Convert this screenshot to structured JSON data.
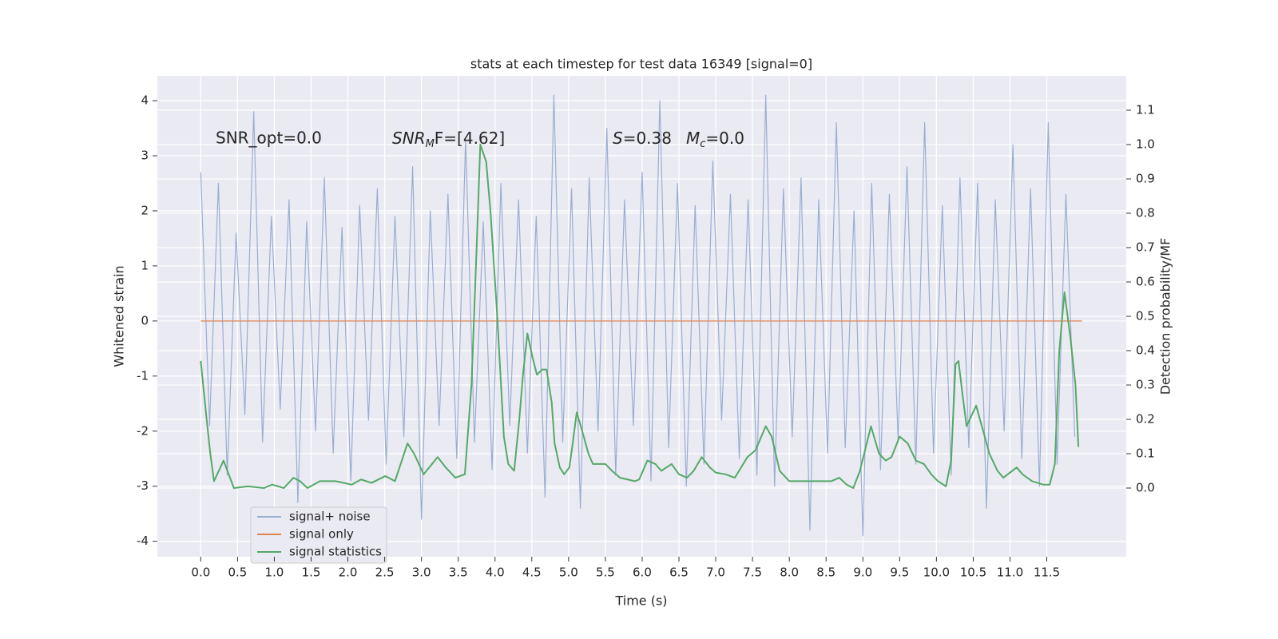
{
  "chart_data": {
    "type": "line",
    "title": "stats at each timestep for test data 16349 [signal=0]",
    "x_label": "Time (s)",
    "y_label": "Whitened strain",
    "y2_label": "Detection probability/MF",
    "annotations": [
      {
        "text": "SNR_opt=0.0"
      },
      {
        "parts": [
          "SNR",
          "M",
          "F=[4.62]"
        ]
      },
      {
        "parts": [
          "S",
          "=0.38"
        ]
      },
      {
        "parts": [
          "M",
          "c",
          "=0.0"
        ]
      }
    ],
    "xlim": [
      -0.59,
      12.58
    ],
    "ylim": [
      -4.28,
      4.45
    ],
    "y2lim": [
      -0.2,
      1.2
    ],
    "xticks": [
      {
        "value": 0,
        "label": "0.0"
      },
      0.5,
      {
        "value": 1,
        "label": "1.0"
      },
      1.5,
      {
        "value": 2,
        "label": "2.0"
      },
      2.5,
      {
        "value": 3,
        "label": "3.0"
      },
      3.5,
      {
        "value": 4,
        "label": "4.0"
      },
      4.5,
      {
        "value": 5,
        "label": "5.0"
      },
      5.5,
      {
        "value": 6,
        "label": "6.0"
      },
      6.5,
      {
        "value": 7,
        "label": "7.0"
      },
      7.5,
      {
        "value": 8,
        "label": "8.0"
      },
      8.5,
      {
        "value": 9,
        "label": "9.0"
      },
      9.5,
      {
        "value": 10,
        "label": "10.0"
      },
      10.5,
      {
        "value": 11,
        "label": "11.0"
      },
      11.5
    ],
    "yticks": [
      -4,
      -3,
      -2,
      -1,
      0,
      1,
      2,
      3,
      4
    ],
    "y2ticks": [
      {
        "value": 0,
        "label": "0.0"
      },
      0.1,
      0.2,
      0.3,
      0.4,
      0.5,
      0.6,
      0.7,
      0.8,
      0.9,
      {
        "value": 1,
        "label": "1.0"
      },
      1.1
    ],
    "grid": true,
    "legend": "lower left",
    "series": [
      {
        "name": "signal+ noise",
        "color": "#9aaed2",
        "x": [
          0,
          0.12,
          0.24,
          0.36,
          0.48,
          0.6,
          0.72,
          0.84,
          0.96,
          1.08,
          1.2,
          1.32,
          1.44,
          1.56,
          1.68,
          1.8,
          1.92,
          2.04,
          2.16,
          2.28,
          2.4,
          2.52,
          2.64,
          2.76,
          2.88,
          3,
          3.12,
          3.24,
          3.36,
          3.48,
          3.6,
          3.72,
          3.84,
          3.96,
          4.08,
          4.2,
          4.32,
          4.44,
          4.56,
          4.68,
          4.8,
          4.92,
          5.04,
          5.16,
          5.28,
          5.4,
          5.52,
          5.64,
          5.76,
          5.88,
          6,
          6.12,
          6.24,
          6.36,
          6.48,
          6.6,
          6.72,
          6.84,
          6.96,
          7.08,
          7.2,
          7.32,
          7.44,
          7.56,
          7.68,
          7.8,
          7.92,
          8.04,
          8.16,
          8.28,
          8.4,
          8.52,
          8.64,
          8.76,
          8.88,
          9,
          9.12,
          9.24,
          9.36,
          9.48,
          9.6,
          9.72,
          9.84,
          9.96,
          10.08,
          10.2,
          10.32,
          10.44,
          10.56,
          10.68,
          10.8,
          10.92,
          11.04,
          11.16,
          11.28,
          11.4,
          11.52,
          11.64,
          11.76,
          11.88
        ],
        "values": [
          2.7,
          -1.9,
          2.5,
          -2.8,
          1.6,
          -1.7,
          3.8,
          -2.2,
          1.9,
          -1.6,
          2.2,
          -3.3,
          1.8,
          -2.0,
          2.6,
          -2.4,
          1.7,
          -2.9,
          2.1,
          -1.8,
          2.4,
          -2.6,
          1.9,
          -2.1,
          2.8,
          -3.6,
          2.0,
          -1.9,
          2.3,
          -2.5,
          3.3,
          -2.2,
          1.8,
          -2.7,
          2.5,
          -1.9,
          2.2,
          -2.4,
          1.9,
          -3.2,
          4.1,
          -2.2,
          2.4,
          -3.4,
          2.6,
          -2.0,
          3.5,
          -2.8,
          2.2,
          -1.9,
          2.7,
          -2.9,
          4.0,
          -2.3,
          2.5,
          -3.0,
          2.1,
          -2.6,
          2.9,
          -1.8,
          2.3,
          -2.5,
          2.2,
          -2.8,
          4.1,
          -3.0,
          2.4,
          -2.1,
          2.6,
          -3.8,
          2.2,
          -2.4,
          3.6,
          -2.3,
          2.0,
          -3.9,
          2.5,
          -2.7,
          2.3,
          -2.2,
          2.8,
          -2.6,
          3.6,
          -2.4,
          2.1,
          -2.8,
          2.6,
          -2.3,
          2.5,
          -3.4,
          2.2,
          -2.0,
          3.2,
          -2.5,
          2.4,
          -3.0,
          3.6,
          -2.6,
          2.3,
          -2.1
        ]
      },
      {
        "name": "signal only",
        "color": "#dd8452",
        "x": [
          0,
          11.98
        ],
        "values": [
          0,
          0
        ]
      },
      {
        "name": "signal statistics",
        "color": "#55a868",
        "axis": "y2",
        "x": [
          0,
          0.08,
          0.13,
          0.18,
          0.31,
          0.45,
          0.64,
          0.86,
          0.97,
          1.13,
          1.26,
          1.35,
          1.45,
          1.62,
          1.83,
          2.05,
          2.18,
          2.32,
          2.51,
          2.64,
          2.81,
          2.9,
          3.03,
          3.22,
          3.33,
          3.46,
          3.59,
          3.68,
          3.75,
          3.8,
          3.88,
          3.94,
          4.03,
          4.12,
          4.18,
          4.26,
          4.33,
          4.38,
          4.44,
          4.51,
          4.57,
          4.64,
          4.7,
          4.77,
          4.81,
          4.88,
          4.94,
          5.01,
          5.05,
          5.11,
          5.18,
          5.27,
          5.33,
          5.5,
          5.59,
          5.7,
          5.9,
          5.96,
          6.07,
          6.18,
          6.26,
          6.4,
          6.5,
          6.61,
          6.7,
          6.81,
          6.92,
          7.0,
          7.13,
          7.26,
          7.43,
          7.54,
          7.68,
          7.76,
          7.87,
          8.0,
          8.24,
          8.57,
          8.68,
          8.78,
          8.87,
          8.96,
          9.11,
          9.22,
          9.31,
          9.39,
          9.5,
          9.61,
          9.72,
          9.83,
          9.93,
          10.02,
          10.13,
          10.2,
          10.26,
          10.3,
          10.35,
          10.41,
          10.54,
          10.63,
          10.72,
          10.83,
          10.91,
          11.09,
          11.17,
          11.3,
          11.45,
          11.54,
          11.61,
          11.67,
          11.74,
          11.82,
          11.89,
          11.93
        ],
        "values": [
          0.37,
          0.2,
          0.1,
          0.02,
          0.08,
          0.0,
          0.005,
          0.0,
          0.01,
          0.0,
          0.03,
          0.02,
          0.0,
          0.02,
          0.02,
          0.01,
          0.025,
          0.015,
          0.035,
          0.02,
          0.13,
          0.1,
          0.04,
          0.09,
          0.06,
          0.03,
          0.04,
          0.3,
          0.7,
          1.0,
          0.95,
          0.8,
          0.5,
          0.15,
          0.07,
          0.05,
          0.2,
          0.33,
          0.45,
          0.38,
          0.33,
          0.345,
          0.345,
          0.25,
          0.13,
          0.06,
          0.04,
          0.06,
          0.12,
          0.22,
          0.17,
          0.1,
          0.07,
          0.07,
          0.05,
          0.03,
          0.02,
          0.025,
          0.08,
          0.07,
          0.05,
          0.07,
          0.04,
          0.03,
          0.05,
          0.09,
          0.06,
          0.045,
          0.04,
          0.03,
          0.09,
          0.11,
          0.18,
          0.15,
          0.05,
          0.02,
          0.02,
          0.02,
          0.03,
          0.01,
          0.0,
          0.05,
          0.18,
          0.1,
          0.08,
          0.09,
          0.15,
          0.13,
          0.08,
          0.07,
          0.04,
          0.02,
          0.005,
          0.08,
          0.36,
          0.37,
          0.28,
          0.18,
          0.24,
          0.17,
          0.1,
          0.05,
          0.03,
          0.06,
          0.04,
          0.02,
          0.01,
          0.01,
          0.07,
          0.4,
          0.57,
          0.44,
          0.3,
          0.12
        ]
      }
    ]
  }
}
